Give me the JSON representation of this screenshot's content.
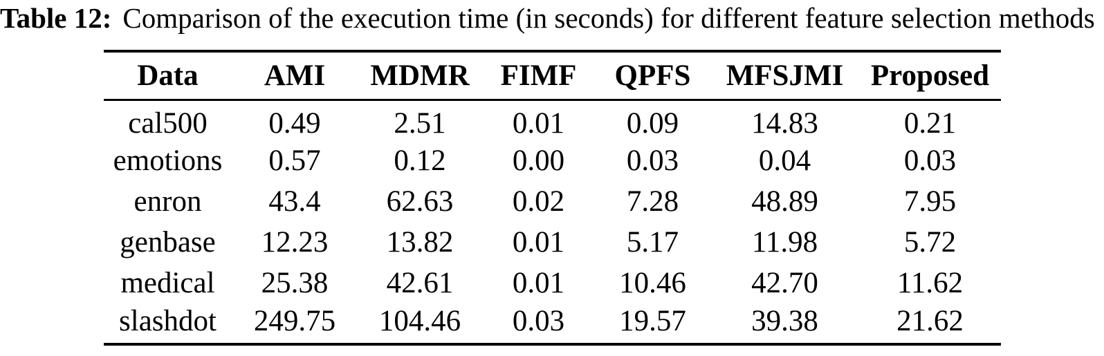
{
  "caption": {
    "label": "Table 12:",
    "text": "Comparison of the execution time (in seconds) for different feature selection methods"
  },
  "colors": {
    "text": "#000000",
    "background": "#ffffff",
    "rule": "#000000"
  },
  "table": {
    "columns": [
      "Data",
      "AMI",
      "MDMR",
      "FIMF",
      "QPFS",
      "MFSJMI",
      "Proposed"
    ],
    "rows": [
      {
        "data": "cal500",
        "values": [
          "0.49",
          "2.51",
          "0.01",
          "0.09",
          "14.83",
          "0.21"
        ]
      },
      {
        "data": "emotions",
        "values": [
          "0.57",
          "0.12",
          "0.00",
          "0.03",
          "0.04",
          "0.03"
        ]
      },
      {
        "data": "enron",
        "values": [
          "43.4",
          "62.63",
          "0.02",
          "7.28",
          "48.89",
          "7.95"
        ]
      },
      {
        "data": "genbase",
        "values": [
          "12.23",
          "13.82",
          "0.01",
          "5.17",
          "11.98",
          "5.72"
        ]
      },
      {
        "data": "medical",
        "values": [
          "25.38",
          "42.61",
          "0.01",
          "10.46",
          "42.70",
          "11.62"
        ]
      },
      {
        "data": "slashdot",
        "values": [
          "249.75",
          "104.46",
          "0.03",
          "19.57",
          "39.38",
          "21.62"
        ]
      }
    ]
  }
}
